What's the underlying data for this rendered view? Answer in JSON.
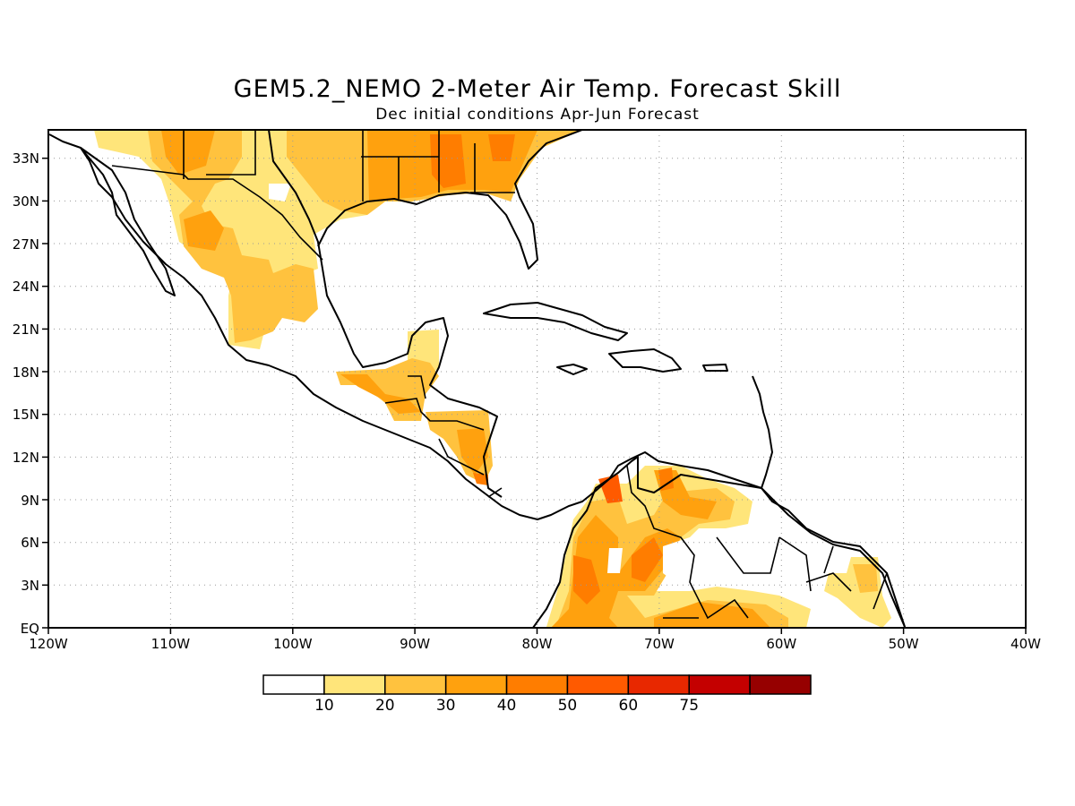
{
  "title": "GEM5.2_NEMO 2-Meter Air Temp. Forecast Skill",
  "subtitle": "Dec initial conditions  Apr-Jun Forecast",
  "map": {
    "lon_range": [
      -120,
      -40
    ],
    "lat_range": [
      0,
      35
    ],
    "x_ticks": [
      "120W",
      "110W",
      "100W",
      "90W",
      "80W",
      "70W",
      "60W",
      "50W",
      "40W"
    ],
    "y_ticks": [
      "EQ",
      "3N",
      "6N",
      "9N",
      "12N",
      "15N",
      "18N",
      "21N",
      "24N",
      "27N",
      "30N",
      "33N"
    ],
    "grid": true
  },
  "colorbar": {
    "labels": [
      "10",
      "20",
      "30",
      "40",
      "50",
      "60",
      "75"
    ],
    "colors": [
      "#ffffff",
      "#ffe57a",
      "#ffc23e",
      "#ffa10e",
      "#ff7d00",
      "#ff5a00",
      "#e82800",
      "#c40000",
      "#960000"
    ]
  },
  "colors": {
    "c10": "#ffe57a",
    "c20": "#ffc23e",
    "c30": "#ffa10e",
    "c40": "#ff7d00",
    "c50": "#ff5a00"
  }
}
